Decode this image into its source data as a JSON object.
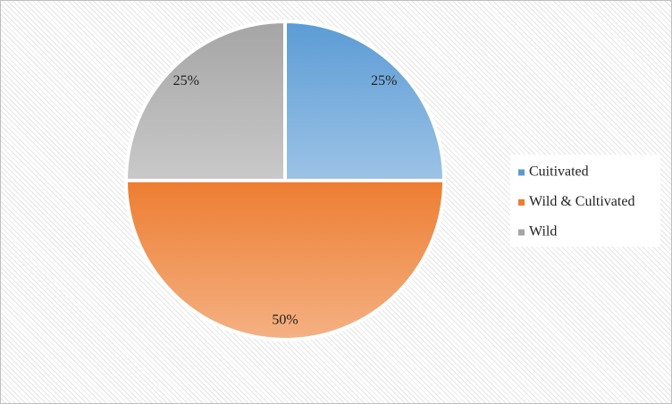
{
  "chart_data": {
    "type": "pie",
    "categories": [
      "Cuitivated",
      "Wild & Cultivated",
      "Wild"
    ],
    "values": [
      25,
      50,
      25
    ],
    "value_labels": [
      "25%",
      "50%",
      "25%"
    ],
    "colors": [
      "#5b9bd5",
      "#ed7d31",
      "#a5a5a5"
    ],
    "legend": "right"
  }
}
